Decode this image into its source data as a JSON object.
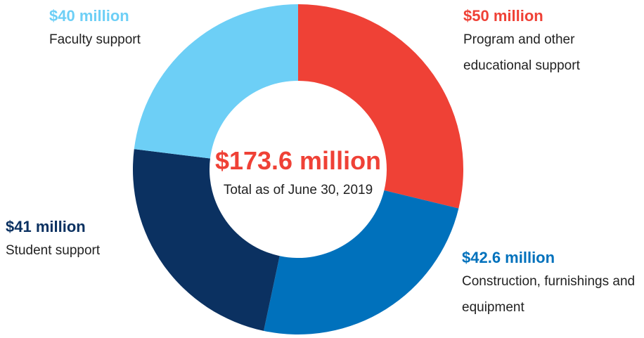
{
  "chart_data": {
    "type": "donut",
    "categories": [
      "Program and other educational support",
      "Construction, furnishings and equipment",
      "Student support",
      "Faculty support"
    ],
    "values": [
      50,
      42.6,
      41,
      40
    ],
    "value_labels": [
      "$50 million",
      "$42.6 million",
      "$41 million",
      "$40 million"
    ],
    "colors": [
      "#ef4136",
      "#0071bc",
      "#0b3161",
      "#6dcff6"
    ],
    "center_title": "$173.6 million",
    "center_subtitle": "Total as of June 30, 2019"
  }
}
